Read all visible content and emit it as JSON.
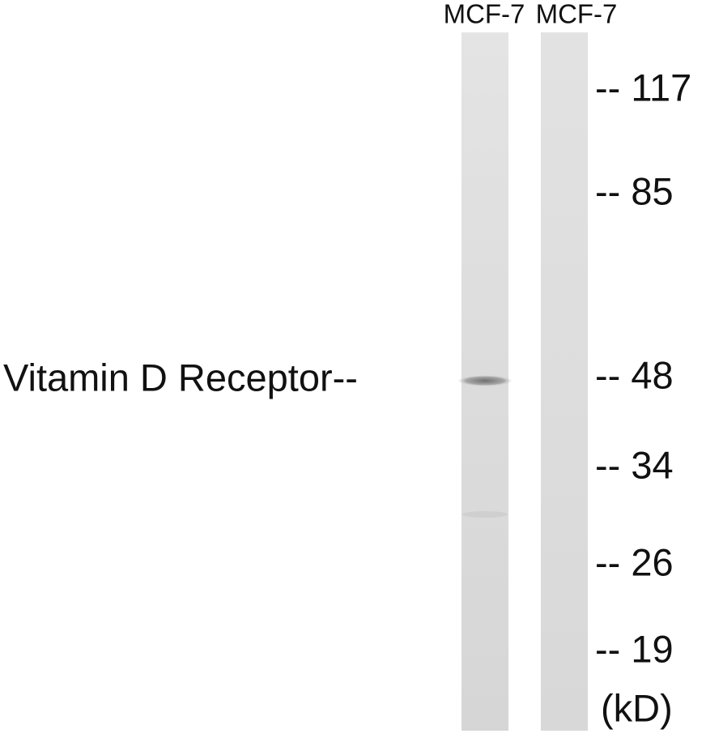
{
  "lanes": [
    {
      "label": "MCF-7"
    },
    {
      "label": "MCF-7"
    }
  ],
  "band_label": "Vitamin D Receptor--",
  "markers": [
    "-- 117",
    "-- 85",
    "-- 48",
    "-- 34",
    "-- 26",
    "-- 19"
  ],
  "unit": "(kD)"
}
